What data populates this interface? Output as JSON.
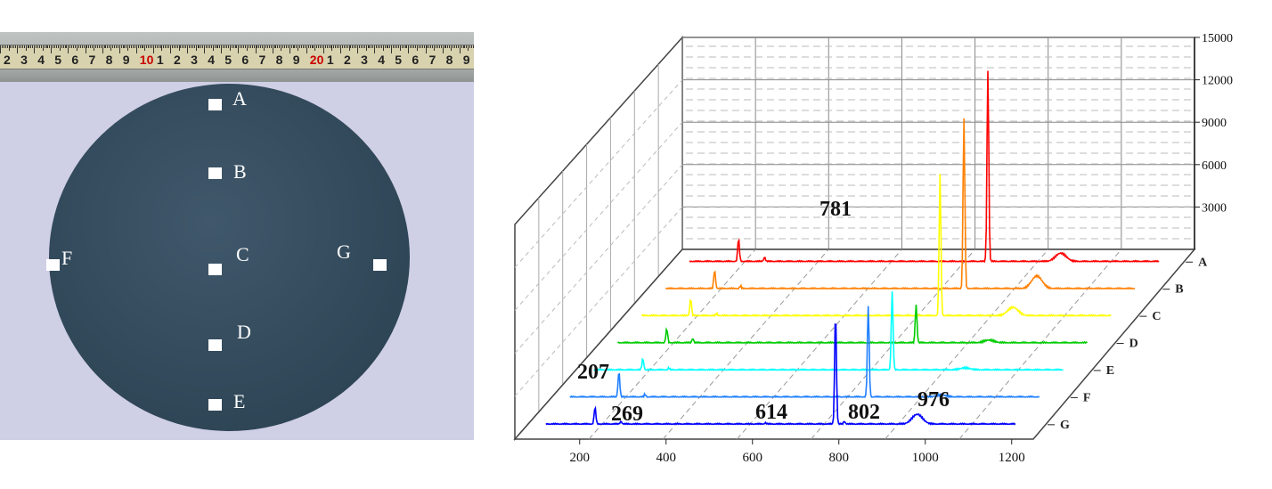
{
  "photo": {
    "ruler_numbers": [
      "2",
      "3",
      "4",
      "5",
      "6",
      "7",
      "8",
      "9",
      "10",
      "1",
      "2",
      "3",
      "4",
      "5",
      "6",
      "7",
      "8",
      "9",
      "20",
      "1",
      "2",
      "3",
      "4",
      "5",
      "6",
      "7",
      "8",
      "9"
    ],
    "ruler_highlight": [
      "10",
      "20"
    ],
    "marks": [
      "A",
      "B",
      "C",
      "D",
      "E",
      "F",
      "G"
    ],
    "colors": {
      "background": "#cfcfe6",
      "wafer": "#33495a",
      "ruler_tape": "#d8d2ae",
      "mark": "#ffffff"
    }
  },
  "chart_data": {
    "type": "line",
    "title": "",
    "xlabel": "",
    "ylabel": "",
    "x_ticks": [
      200,
      400,
      600,
      800,
      1000,
      1200
    ],
    "y_ticks": [
      3000,
      6000,
      9000,
      12000,
      15000
    ],
    "xlim": [
      50,
      1250
    ],
    "ylim": [
      0,
      15000
    ],
    "series": [
      {
        "name": "A",
        "color": "#ff0000",
        "peaks": [
          [
            207,
            1600
          ],
          [
            269,
            300
          ],
          [
            802,
            13500
          ],
          [
            976,
            600
          ]
        ]
      },
      {
        "name": "B",
        "color": "#ff8000",
        "peaks": [
          [
            207,
            1300
          ],
          [
            269,
            200
          ],
          [
            802,
            12000
          ],
          [
            976,
            900
          ]
        ]
      },
      {
        "name": "C",
        "color": "#ffff00",
        "peaks": [
          [
            207,
            1200
          ],
          [
            269,
            150
          ],
          [
            802,
            10000
          ],
          [
            976,
            600
          ]
        ]
      },
      {
        "name": "D",
        "color": "#00cc00",
        "peaks": [
          [
            207,
            1000
          ],
          [
            269,
            300
          ],
          [
            802,
            2700
          ],
          [
            976,
            200
          ]
        ]
      },
      {
        "name": "E",
        "color": "#00ffff",
        "peaks": [
          [
            207,
            800
          ],
          [
            269,
            150
          ],
          [
            802,
            5600
          ],
          [
            976,
            150
          ]
        ]
      },
      {
        "name": "F",
        "color": "#2080ff",
        "peaks": [
          [
            207,
            1800
          ],
          [
            269,
            200
          ],
          [
            802,
            6500
          ],
          [
            976,
            150
          ]
        ]
      },
      {
        "name": "G",
        "color": "#0000ff",
        "peaks": [
          [
            207,
            1200
          ],
          [
            269,
            200
          ],
          [
            614,
            100
          ],
          [
            781,
            7900
          ],
          [
            802,
            200
          ],
          [
            976,
            700
          ]
        ]
      }
    ],
    "annotations": [
      "781",
      "207",
      "269",
      "614",
      "802",
      "976"
    ],
    "grid": true
  }
}
